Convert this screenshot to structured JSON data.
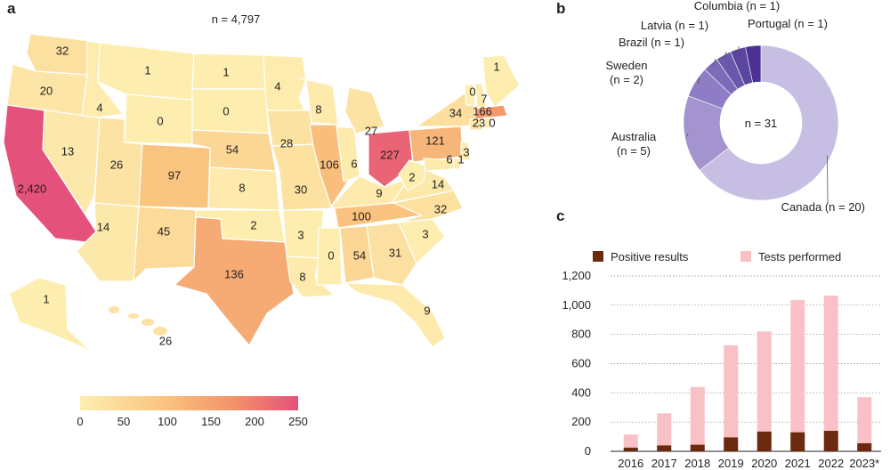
{
  "panels": {
    "a": "a",
    "b": "b",
    "c": "c"
  },
  "map": {
    "n_label": "n = 4,797",
    "colorbar": {
      "ticks": [
        "0",
        "50",
        "100",
        "150",
        "200",
        "250"
      ],
      "min": 0,
      "max": 250
    },
    "states": [
      {
        "id": "WA",
        "value": 32,
        "label": "32"
      },
      {
        "id": "OR",
        "value": 20,
        "label": "20"
      },
      {
        "id": "CA",
        "value": 2420,
        "label": "2,420"
      },
      {
        "id": "NV",
        "value": 13,
        "label": "13"
      },
      {
        "id": "ID",
        "value": 4,
        "label": "4"
      },
      {
        "id": "MT",
        "value": 1,
        "label": "1"
      },
      {
        "id": "WY",
        "value": 0,
        "label": "0"
      },
      {
        "id": "UT",
        "value": 26,
        "label": "26"
      },
      {
        "id": "AZ",
        "value": 14,
        "label": "14"
      },
      {
        "id": "CO",
        "value": 97,
        "label": "97"
      },
      {
        "id": "NM",
        "value": 45,
        "label": "45"
      },
      {
        "id": "ND",
        "value": 1,
        "label": "1"
      },
      {
        "id": "SD",
        "value": 0,
        "label": "0"
      },
      {
        "id": "NE",
        "value": 54,
        "label": "54"
      },
      {
        "id": "KS",
        "value": 8,
        "label": "8"
      },
      {
        "id": "OK",
        "value": 2,
        "label": "2"
      },
      {
        "id": "TX",
        "value": 136,
        "label": "136"
      },
      {
        "id": "MN",
        "value": 4,
        "label": "4"
      },
      {
        "id": "IA",
        "value": 28,
        "label": "28"
      },
      {
        "id": "MO",
        "value": 30,
        "label": "30"
      },
      {
        "id": "AR",
        "value": 3,
        "label": "3"
      },
      {
        "id": "LA",
        "value": 8,
        "label": "8"
      },
      {
        "id": "WI",
        "value": 8,
        "label": "8"
      },
      {
        "id": "IL",
        "value": 106,
        "label": "106"
      },
      {
        "id": "MI",
        "value": 27,
        "label": "27"
      },
      {
        "id": "IN",
        "value": 6,
        "label": "6"
      },
      {
        "id": "OH",
        "value": 227,
        "label": "227"
      },
      {
        "id": "KY",
        "value": 9,
        "label": "9"
      },
      {
        "id": "TN",
        "value": 100,
        "label": "100"
      },
      {
        "id": "MS",
        "value": 0,
        "label": "0"
      },
      {
        "id": "AL",
        "value": 54,
        "label": "54"
      },
      {
        "id": "GA",
        "value": 31,
        "label": "31"
      },
      {
        "id": "FL",
        "value": 9,
        "label": "9"
      },
      {
        "id": "SC",
        "value": 3,
        "label": "3"
      },
      {
        "id": "NC",
        "value": 32,
        "label": "32"
      },
      {
        "id": "VA",
        "value": 14,
        "label": "14"
      },
      {
        "id": "WV",
        "value": 2,
        "label": "2"
      },
      {
        "id": "PA",
        "value": 121,
        "label": "121"
      },
      {
        "id": "NY",
        "value": 34,
        "label": "34"
      },
      {
        "id": "VT",
        "value": 0,
        "label": "0"
      },
      {
        "id": "NH",
        "value": 7,
        "label": "7"
      },
      {
        "id": "ME",
        "value": 1,
        "label": "1"
      },
      {
        "id": "MA",
        "value": 166,
        "label": "166"
      },
      {
        "id": "CT",
        "value": 23,
        "label": "23"
      },
      {
        "id": "RI",
        "value": 0,
        "label": "0"
      },
      {
        "id": "NJ",
        "value": 3,
        "label": "3"
      },
      {
        "id": "DE",
        "value": 1,
        "label": "1"
      },
      {
        "id": "MD",
        "value": 6,
        "label": "6"
      },
      {
        "id": "AK",
        "value": 1,
        "label": "1"
      },
      {
        "id": "HI",
        "value": 26,
        "label": "26"
      }
    ]
  },
  "chart_data": [
    {
      "type": "pie",
      "center_label": "n = 31",
      "slices": [
        {
          "label": "Canada (n = 20)",
          "value": 20,
          "color": "#c7bfe3"
        },
        {
          "label": "Australia\n(n = 5)",
          "value": 5,
          "color": "#a394cf"
        },
        {
          "label": "Sweden\n(n = 2)",
          "value": 2,
          "color": "#8e7dc4"
        },
        {
          "label": "Brazil (n = 1)",
          "value": 1,
          "color": "#7d6bb8"
        },
        {
          "label": "Latvia (n = 1)",
          "value": 1,
          "color": "#6b58ac"
        },
        {
          "label": "Columbia (n = 1)",
          "value": 1,
          "color": "#5a459f"
        },
        {
          "label": "Portugal (n = 1)",
          "value": 1,
          "color": "#4a3193"
        }
      ]
    },
    {
      "type": "bar",
      "stacked": false,
      "categories": [
        "2016",
        "2017",
        "2018",
        "2019",
        "2020",
        "2021",
        "2022",
        "2023*"
      ],
      "series": [
        {
          "name": "Tests performed",
          "color": "#f9c0c6",
          "values": [
            115,
            260,
            440,
            725,
            820,
            1035,
            1065,
            370
          ]
        },
        {
          "name": "Positive results",
          "color": "#6b2a10",
          "values": [
            25,
            40,
            45,
            95,
            135,
            130,
            140,
            55
          ]
        }
      ],
      "legend": [
        "Positive results",
        "Tests performed"
      ],
      "yticks": [
        "0",
        "200",
        "400",
        "600",
        "800",
        "1,000",
        "1,200"
      ],
      "ylim": [
        0,
        1200
      ]
    }
  ]
}
